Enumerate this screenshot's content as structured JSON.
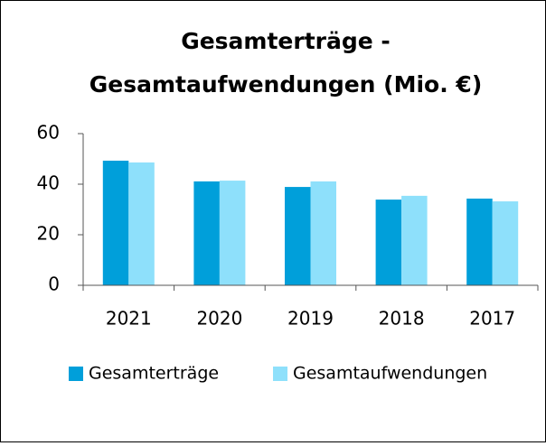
{
  "chart_data": {
    "type": "bar",
    "title": [
      "Gesamterträge -",
      "Gesamtaufwendungen (Mio. €)"
    ],
    "categories": [
      "2021",
      "2020",
      "2019",
      "2018",
      "2017"
    ],
    "series": [
      {
        "name": "Gesamterträge",
        "color": "#009fda",
        "values": [
          49.3,
          41.1,
          38.9,
          33.9,
          34.3
        ]
      },
      {
        "name": "Gesamtaufwendungen",
        "color": "#8ee0fb",
        "values": [
          48.6,
          41.4,
          41.1,
          35.4,
          33.2
        ]
      }
    ],
    "ylim": [
      0,
      60
    ],
    "yticks": [
      0,
      20,
      40,
      60
    ],
    "grid": false,
    "legend": "bottom"
  }
}
